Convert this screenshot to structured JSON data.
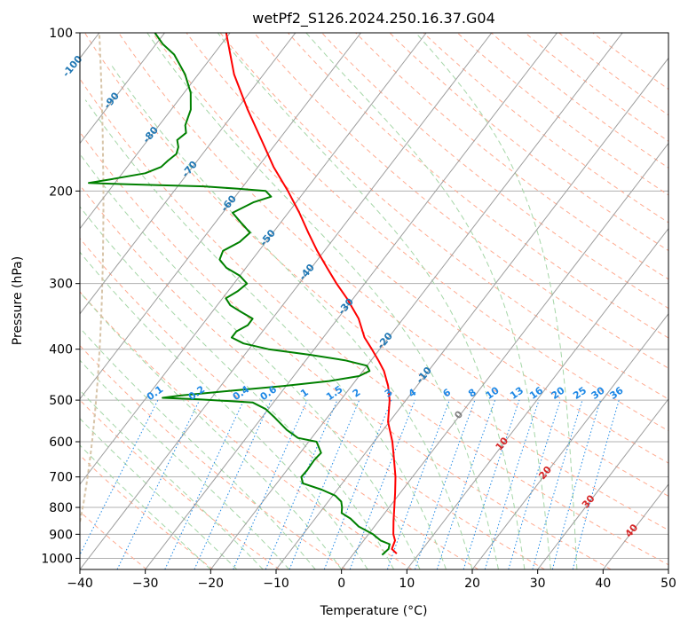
{
  "chart_data": {
    "type": "line",
    "diagram": "skew-T log-P",
    "title": "wetPf2_S126.2024.250.16.37.G04",
    "xlabel": "Temperature (°C)",
    "ylabel": "Pressure (hPa)",
    "xlim": [
      -40,
      50
    ],
    "ylim": [
      1050,
      100
    ],
    "y_scale": "log",
    "grid": true,
    "x_ticks": [
      -40,
      -30,
      -20,
      -10,
      0,
      10,
      20,
      30,
      40,
      50
    ],
    "y_ticks": [
      1000,
      900,
      800,
      700,
      600,
      500,
      400,
      300,
      200,
      100
    ],
    "isotherm_labels": [
      -100,
      -90,
      -80,
      -70,
      -60,
      -50,
      -40,
      -30,
      -20,
      -10,
      0,
      10,
      20,
      30,
      40
    ],
    "mixing_ratio_labels": [
      "0.1",
      "0.2",
      "0.4",
      "0.6",
      "1",
      "1.5",
      "2",
      "3",
      "4",
      "6",
      "8",
      "10",
      "13",
      "16",
      "20",
      "25",
      "30",
      "36"
    ],
    "series": [
      {
        "role": "temperature",
        "color": "#ff0000",
        "pressure": [
          980,
          960,
          925,
          900,
          850,
          800,
          750,
          700,
          650,
          600,
          550,
          500,
          470,
          440,
          420,
          400,
          380,
          350,
          320,
          300,
          280,
          260,
          240,
          220,
          200,
          180,
          160,
          140,
          120,
          100
        ],
        "values": [
          6.6,
          5.3,
          4.8,
          3.8,
          2.3,
          0.8,
          -0.8,
          -2.6,
          -4.8,
          -7.2,
          -10.2,
          -12.5,
          -14.4,
          -16.8,
          -18.9,
          -21.2,
          -23.7,
          -26.8,
          -31.0,
          -34.3,
          -37.6,
          -41.1,
          -44.6,
          -48.3,
          -52.6,
          -57.6,
          -62.6,
          -68.3,
          -74.5,
          -80.6
        ]
      },
      {
        "role": "dewpoint",
        "color": "#008000",
        "pressure": [
          985,
          960,
          940,
          925,
          900,
          870,
          840,
          820,
          800,
          780,
          760,
          740,
          720,
          700,
          680,
          650,
          630,
          600,
          590,
          570,
          540,
          520,
          505,
          498,
          495,
          490,
          480,
          470,
          460,
          450,
          440,
          430,
          420,
          410,
          400,
          390,
          380,
          370,
          360,
          350,
          340,
          330,
          320,
          310,
          300,
          290,
          280,
          270,
          260,
          250,
          240,
          230,
          220,
          210,
          205,
          200,
          198,
          196,
          195,
          194,
          193,
          190,
          185,
          180,
          175,
          170,
          165,
          160,
          155,
          150,
          145,
          140,
          130,
          120,
          110,
          105,
          100
        ],
        "values": [
          4.5,
          4.8,
          4.4,
          2.6,
          0.7,
          -2.4,
          -4.6,
          -6.6,
          -7.2,
          -8.0,
          -9.6,
          -12.4,
          -16.0,
          -17.0,
          -16.9,
          -17.0,
          -16.8,
          -18.8,
          -22.1,
          -24.7,
          -28.0,
          -30.4,
          -33.2,
          -42.0,
          -47.5,
          -45.0,
          -38.0,
          -30.5,
          -24.0,
          -20.0,
          -19.0,
          -20.0,
          -24.0,
          -30.0,
          -37.0,
          -41.5,
          -44.0,
          -44.0,
          -43.0,
          -43.0,
          -45.5,
          -48.0,
          -49.5,
          -48.5,
          -48.0,
          -50.0,
          -53.0,
          -55.0,
          -55.5,
          -54.0,
          -53.5,
          -56.0,
          -58.5,
          -56.5,
          -54.5,
          -56.0,
          -60.5,
          -66.0,
          -73.0,
          -79.0,
          -84.0,
          -81.0,
          -76.5,
          -74.8,
          -74.5,
          -74.0,
          -74.5,
          -75.5,
          -75.0,
          -76.0,
          -76.5,
          -77.0,
          -79.0,
          -82.0,
          -86.0,
          -89.0,
          -91.5
        ]
      }
    ],
    "background_colors": {
      "isotherm": "#9e9e9e",
      "dry_adiabat": "#ffab91",
      "moist_adiabat": "#a5d6a7",
      "mixing_ratio": "#1e88e5",
      "isotherm_label_cold": "#1f77b4",
      "isotherm_label_warm": "#d62728",
      "zero_isotherm_label": "#808080",
      "ccl_curve": "#d7c4a8"
    }
  }
}
